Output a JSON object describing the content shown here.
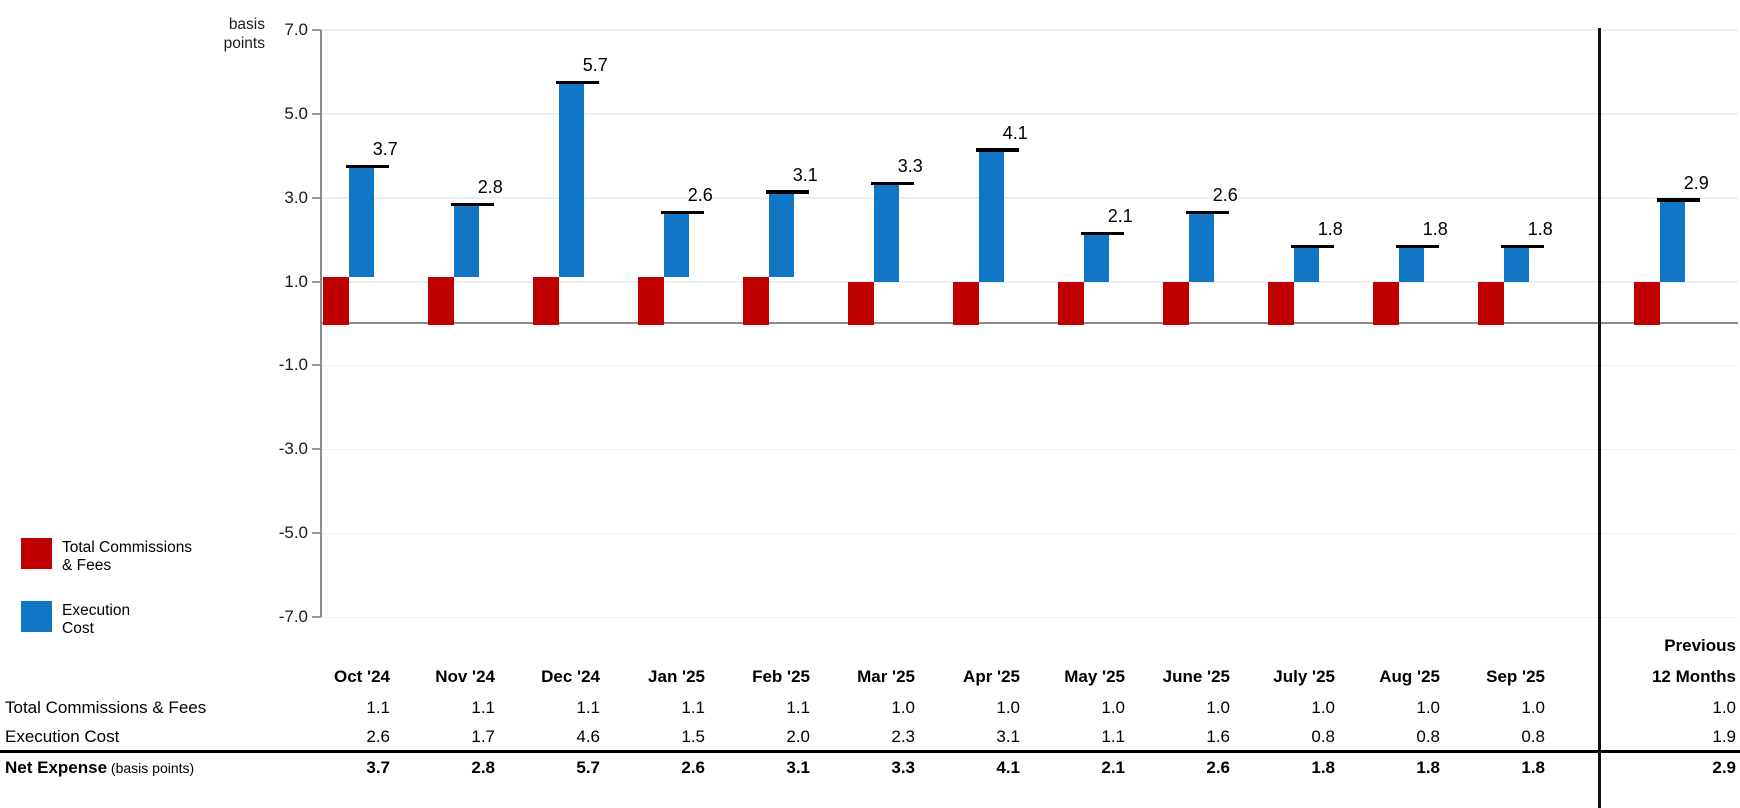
{
  "chart": {
    "unit_label_line1": "basis",
    "unit_label_line2": "points",
    "tick_labels": [
      "7.0",
      "5.0",
      "3.0",
      "1.0",
      "-1.0",
      "-3.0",
      "-5.0",
      "-7.0"
    ]
  },
  "chart_data": {
    "type": "bar",
    "categories": [
      "Oct '24",
      "Nov '24",
      "Dec '24",
      "Jan '25",
      "Feb '25",
      "Mar '25",
      "Apr '25",
      "May '25",
      "June '25",
      "July '25",
      "Aug '25",
      "Sep '25",
      "Previous 12 Months"
    ],
    "series": [
      {
        "name": "Total Commissions & Fees",
        "color": "#c00000",
        "values": [
          1.1,
          1.1,
          1.1,
          1.1,
          1.1,
          1.0,
          1.0,
          1.0,
          1.0,
          1.0,
          1.0,
          1.0,
          1.0
        ]
      },
      {
        "name": "Execution Cost",
        "color": "#1176c6",
        "values": [
          2.6,
          1.7,
          4.6,
          1.5,
          2.0,
          2.3,
          3.1,
          1.1,
          1.6,
          0.8,
          0.8,
          0.8,
          1.9
        ]
      }
    ],
    "totals": [
      3.7,
      2.8,
      5.7,
      2.6,
      3.1,
      3.3,
      4.1,
      2.1,
      2.6,
      1.8,
      1.8,
      1.8,
      2.9
    ],
    "totals_marker": "black dash at net-expense level above each blue bar",
    "title": "",
    "xlabel": "",
    "ylabel": "basis points",
    "ylim": [
      -7.0,
      7.0
    ],
    "yticks": [
      7.0,
      5.0,
      3.0,
      1.0,
      -1.0,
      -3.0,
      -5.0,
      -7.0
    ],
    "grid": true,
    "legend_position": "bottom-left",
    "divider_after_category": "Sep '25"
  },
  "legend": {
    "items": [
      {
        "label_line1": "Total Commissions",
        "label_line2": "& Fees",
        "color": "#c00000"
      },
      {
        "label_line1": "Execution",
        "label_line2": "Cost",
        "color": "#1176c6"
      }
    ]
  },
  "table": {
    "last_column_header_line1": "Previous",
    "columns": [
      "Oct '24",
      "Nov '24",
      "Dec '24",
      "Jan '25",
      "Feb '25",
      "Mar '25",
      "Apr '25",
      "May '25",
      "June '25",
      "July '25",
      "Aug '25",
      "Sep '25",
      "12 Months"
    ],
    "rows": [
      {
        "label": "Total Commissions & Fees",
        "bold": false,
        "values": [
          "1.1",
          "1.1",
          "1.1",
          "1.1",
          "1.1",
          "1.0",
          "1.0",
          "1.0",
          "1.0",
          "1.0",
          "1.0",
          "1.0",
          "1.0"
        ]
      },
      {
        "label": "Execution Cost",
        "bold": false,
        "values": [
          "2.6",
          "1.7",
          "4.6",
          "1.5",
          "2.0",
          "2.3",
          "3.1",
          "1.1",
          "1.6",
          "0.8",
          "0.8",
          "0.8",
          "1.9"
        ]
      },
      {
        "label": "Net Expense",
        "label_suffix": "(basis points)",
        "bold": true,
        "values": [
          "3.7",
          "2.8",
          "5.7",
          "2.6",
          "3.1",
          "3.3",
          "4.1",
          "2.1",
          "2.6",
          "1.8",
          "1.8",
          "1.8",
          "2.9"
        ]
      }
    ]
  }
}
